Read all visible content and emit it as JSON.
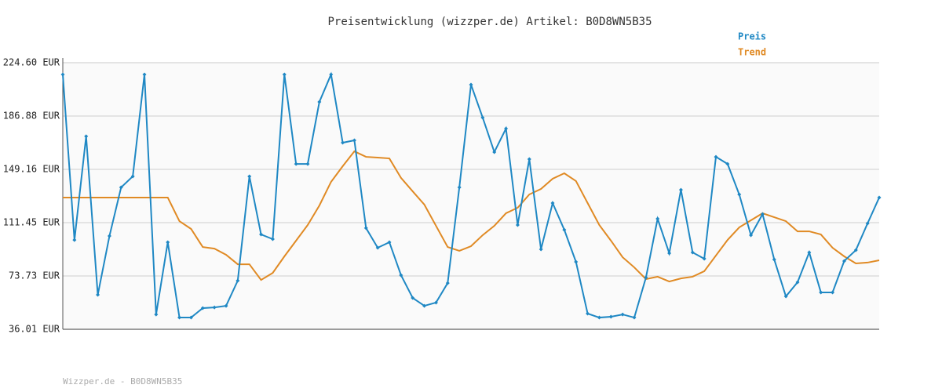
{
  "chart_data": {
    "type": "line",
    "title": "Preisentwicklung (wizzper.de) Artikel: B0D8WN5B35",
    "footer": "Wizzper.de - B0D8WN5B35",
    "categories": [
      null,
      null,
      null,
      null,
      null,
      null,
      null,
      null,
      null,
      null,
      null,
      null,
      null,
      null,
      null,
      null,
      null,
      null,
      null,
      null,
      null,
      null,
      null,
      null,
      null,
      null,
      null,
      null,
      null,
      null,
      null,
      null,
      null,
      null,
      null,
      null,
      null,
      null,
      null,
      null,
      null,
      null,
      null,
      null,
      null,
      null,
      null,
      null,
      null,
      null,
      null,
      null,
      null,
      null,
      null,
      null,
      null,
      null,
      null,
      null,
      null,
      null,
      null,
      null,
      null,
      null,
      null,
      null,
      null,
      null,
      null
    ],
    "ylim": [
      36.01,
      224.6
    ],
    "yticks": [
      {
        "value": 36.01,
        "label": "36.01 EUR"
      },
      {
        "value": 73.73,
        "label": "73.73 EUR"
      },
      {
        "value": 111.45,
        "label": "111.45 EUR"
      },
      {
        "value": 149.16,
        "label": "149.16 EUR"
      },
      {
        "value": 186.88,
        "label": "186.88 EUR"
      },
      {
        "value": 224.6,
        "label": "224.60 EUR"
      }
    ],
    "grid": true,
    "legend": "top-right",
    "series": [
      {
        "name": "Preis",
        "color": "#1f88c4",
        "markers": true,
        "values": [
          216.3,
          99.2,
          172.5,
          60.4,
          102.0,
          136.4,
          144.2,
          216.3,
          46.5,
          97.6,
          44.3,
          44.3,
          51.0,
          51.5,
          52.6,
          70.4,
          144.2,
          103.1,
          99.8,
          216.3,
          153.0,
          153.0,
          196.9,
          216.3,
          168.0,
          169.7,
          107.6,
          93.7,
          97.6,
          74.3,
          58.2,
          52.6,
          54.9,
          68.7,
          136.4,
          209.1,
          185.8,
          161.4,
          178.0,
          109.8,
          156.4,
          92.6,
          125.3,
          106.4,
          83.7,
          47.1,
          44.3,
          44.9,
          46.5,
          44.3,
          72.6,
          114.2,
          89.8,
          134.7,
          90.4,
          85.9,
          158.0,
          153.0,
          131.4,
          102.6,
          117.5,
          85.4,
          59.3,
          69.3,
          90.4,
          62.1,
          62.1,
          84.3,
          92.0,
          110.9,
          129.2
        ]
      },
      {
        "name": "Trend",
        "color": "#e08a24",
        "markers": false,
        "values": [
          129.2,
          129.2,
          129.2,
          129.2,
          129.2,
          129.2,
          129.2,
          129.2,
          129.2,
          129.2,
          112.5,
          107.0,
          94.2,
          93.1,
          88.7,
          82.0,
          82.0,
          70.9,
          75.9,
          87.6,
          98.7,
          109.8,
          123.6,
          140.3,
          151.4,
          161.9,
          158.0,
          157.5,
          156.9,
          143.1,
          133.6,
          124.2,
          109.2,
          94.2,
          91.5,
          94.8,
          102.6,
          109.2,
          118.1,
          122.0,
          131.4,
          135.3,
          142.5,
          146.4,
          140.9,
          125.3,
          109.8,
          98.7,
          87.0,
          79.8,
          71.5,
          73.2,
          69.8,
          72.0,
          73.2,
          77.1,
          88.2,
          99.2,
          108.1,
          113.1,
          118.1,
          115.3,
          112.5,
          105.3,
          105.3,
          103.1,
          93.7,
          87.6,
          82.6,
          83.2,
          84.8
        ]
      }
    ]
  }
}
